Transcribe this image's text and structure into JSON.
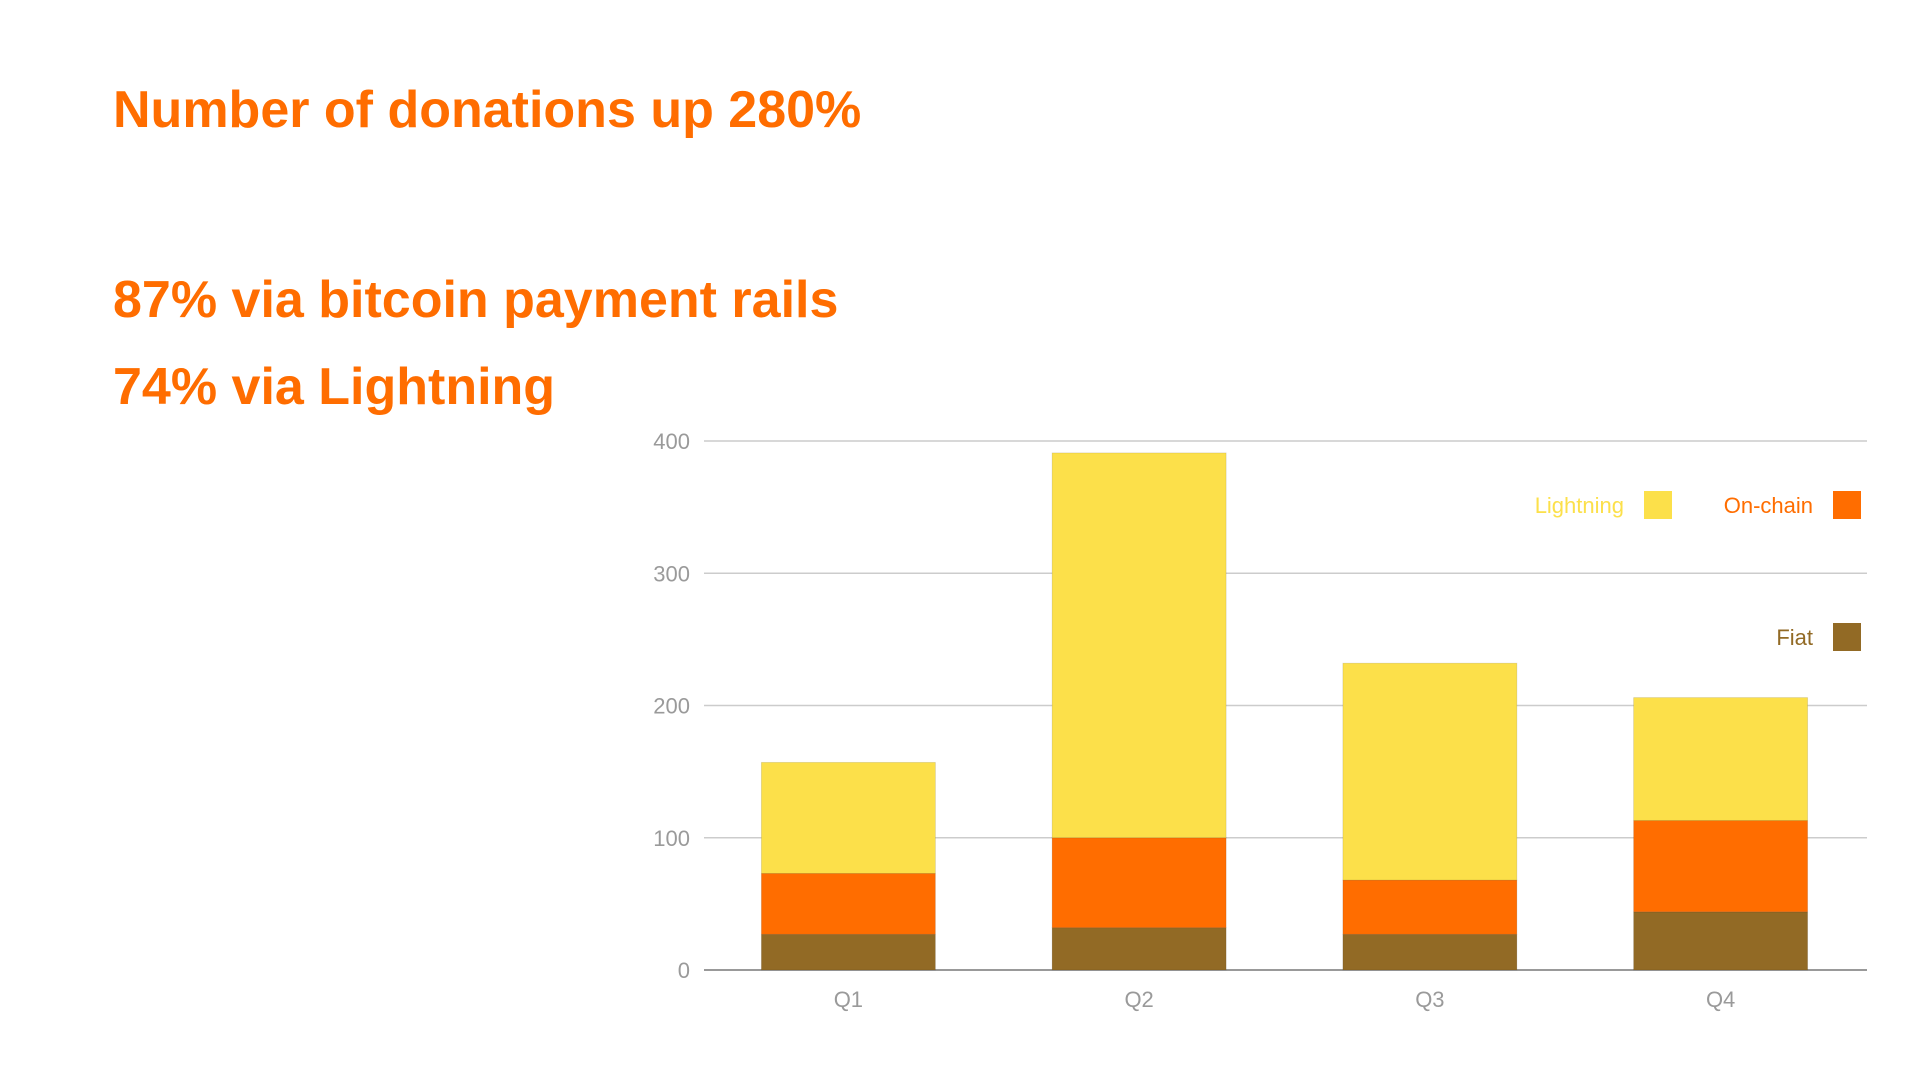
{
  "headline": "Number of donations up 280%",
  "stat_bitcoin": "87% via bitcoin payment rails",
  "stat_lightning": "74% via Lightning",
  "chart_data": {
    "type": "bar",
    "stacked": true,
    "categories": [
      "Q1",
      "Q2",
      "Q3",
      "Q4"
    ],
    "series": [
      {
        "name": "Fiat",
        "color": "#926a25",
        "values": [
          27,
          32,
          27,
          44
        ]
      },
      {
        "name": "On-chain",
        "color": "#ff6d00",
        "values": [
          46,
          68,
          41,
          69
        ]
      },
      {
        "name": "Lightning",
        "color": "#fce04a",
        "values": [
          84,
          291,
          164,
          93
        ]
      }
    ],
    "ylim": [
      0,
      400
    ],
    "yticks": [
      0,
      100,
      200,
      300,
      400
    ],
    "grid": true,
    "legend": "top-right"
  }
}
